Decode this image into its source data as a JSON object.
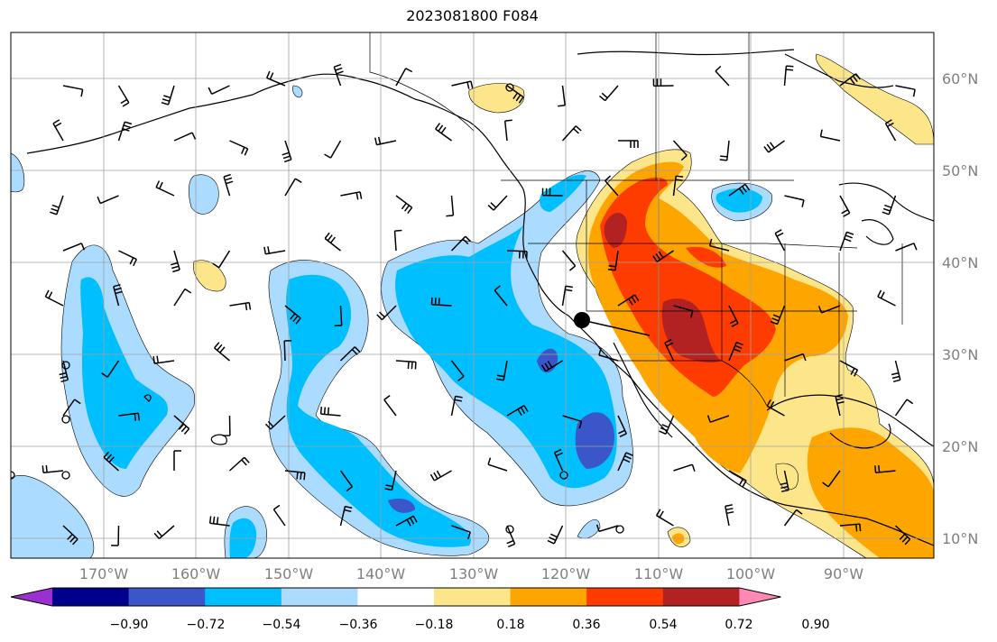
{
  "title": "2023081800 F084",
  "latitude_labels": [
    "60°N",
    "50°N",
    "40°N",
    "30°N",
    "20°N",
    "10°N"
  ],
  "longitude_labels": [
    "170°W",
    "160°W",
    "150°W",
    "140°W",
    "130°W",
    "120°W",
    "110°W",
    "100°W",
    "90°W"
  ],
  "colorbar": {
    "ticks": [
      "−0.90",
      "−0.72",
      "−0.54",
      "−0.36",
      "−0.18",
      "0.18",
      "0.36",
      "0.54",
      "0.72",
      "0.90"
    ],
    "colors": [
      "#9b30d0",
      "#00008b",
      "#3a56c8",
      "#00bfff",
      "#abdcff",
      "#ffffff",
      "#fde68a",
      "#ffa500",
      "#ff3c00",
      "#b22222",
      "#ff88b4"
    ]
  },
  "map": {
    "region": "North Pacific / Western North America",
    "marker": "black-dot"
  }
}
